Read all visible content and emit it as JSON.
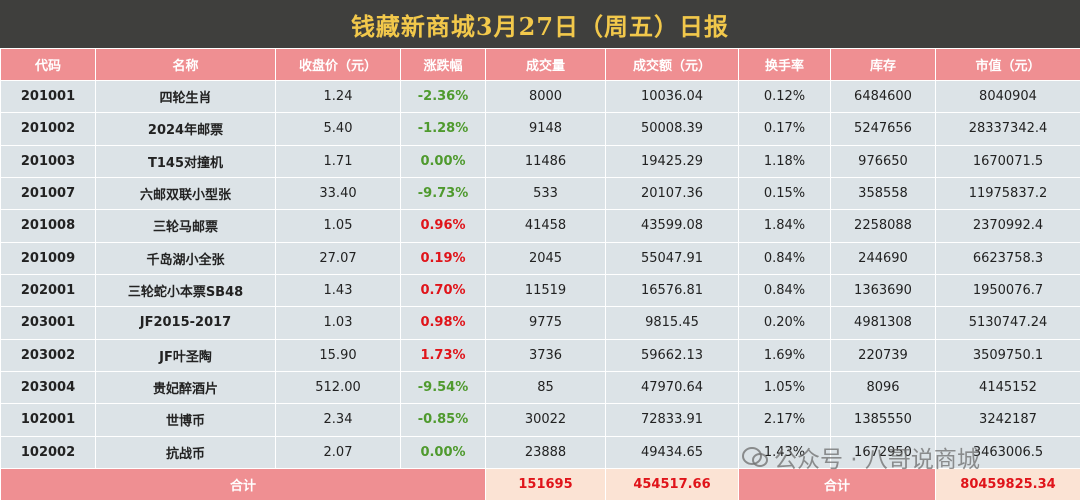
{
  "header": {
    "title": "钱藏新商城3月27日（周五）日报"
  },
  "table": {
    "columns": [
      "代码",
      "名称",
      "收盘价（元）",
      "涨跌幅",
      "成交量",
      "成交额（元）",
      "换手率",
      "库存",
      "市值（元）"
    ],
    "rows": [
      [
        "201001",
        "四轮生肖",
        "1.24",
        "-2.36%",
        "8000",
        "10036.04",
        "0.12%",
        "6484600",
        "8040904"
      ],
      [
        "201002",
        "2024年邮票",
        "5.40",
        "-1.28%",
        "9148",
        "50008.39",
        "0.17%",
        "5247656",
        "28337342.4"
      ],
      [
        "201003",
        "T145对撞机",
        "1.71",
        "0.00%",
        "11486",
        "19425.29",
        "1.18%",
        "976650",
        "1670071.5"
      ],
      [
        "201007",
        "六邮双联小型张",
        "33.40",
        "-9.73%",
        "533",
        "20107.36",
        "0.15%",
        "358558",
        "11975837.2"
      ],
      [
        "201008",
        "三轮马邮票",
        "1.05",
        "0.96%",
        "41458",
        "43599.08",
        "1.84%",
        "2258088",
        "2370992.4"
      ],
      [
        "201009",
        "千岛湖小全张",
        "27.07",
        "0.19%",
        "2045",
        "55047.91",
        "0.84%",
        "244690",
        "6623758.3"
      ],
      [
        "202001",
        "三轮蛇小本票SB48",
        "1.43",
        "0.70%",
        "11519",
        "16576.81",
        "0.84%",
        "1363690",
        "1950076.7"
      ],
      [
        "203001",
        "JF2015-2017",
        "1.03",
        "0.98%",
        "9775",
        "9815.45",
        "0.20%",
        "4981308",
        "5130747.24"
      ],
      [
        "203002",
        "JF叶圣陶",
        "15.90",
        "1.73%",
        "3736",
        "59662.13",
        "1.69%",
        "220739",
        "3509750.1"
      ],
      [
        "203004",
        "贵妃醉酒片",
        "512.00",
        "-9.54%",
        "85",
        "47970.64",
        "1.05%",
        "8096",
        "4145152"
      ],
      [
        "102001",
        "世博币",
        "2.34",
        "-0.85%",
        "30022",
        "72833.91",
        "2.17%",
        "1385550",
        "3242187"
      ],
      [
        "102002",
        "抗战币",
        "2.07",
        "0.00%",
        "23888",
        "49434.65",
        "1.43%",
        "1672950",
        "3463006.5"
      ]
    ],
    "footer": [
      "合计",
      "151695",
      "454517.66",
      "合计",
      "80459825.34"
    ]
  },
  "watermark": "公众号 · 八哥说商城"
}
